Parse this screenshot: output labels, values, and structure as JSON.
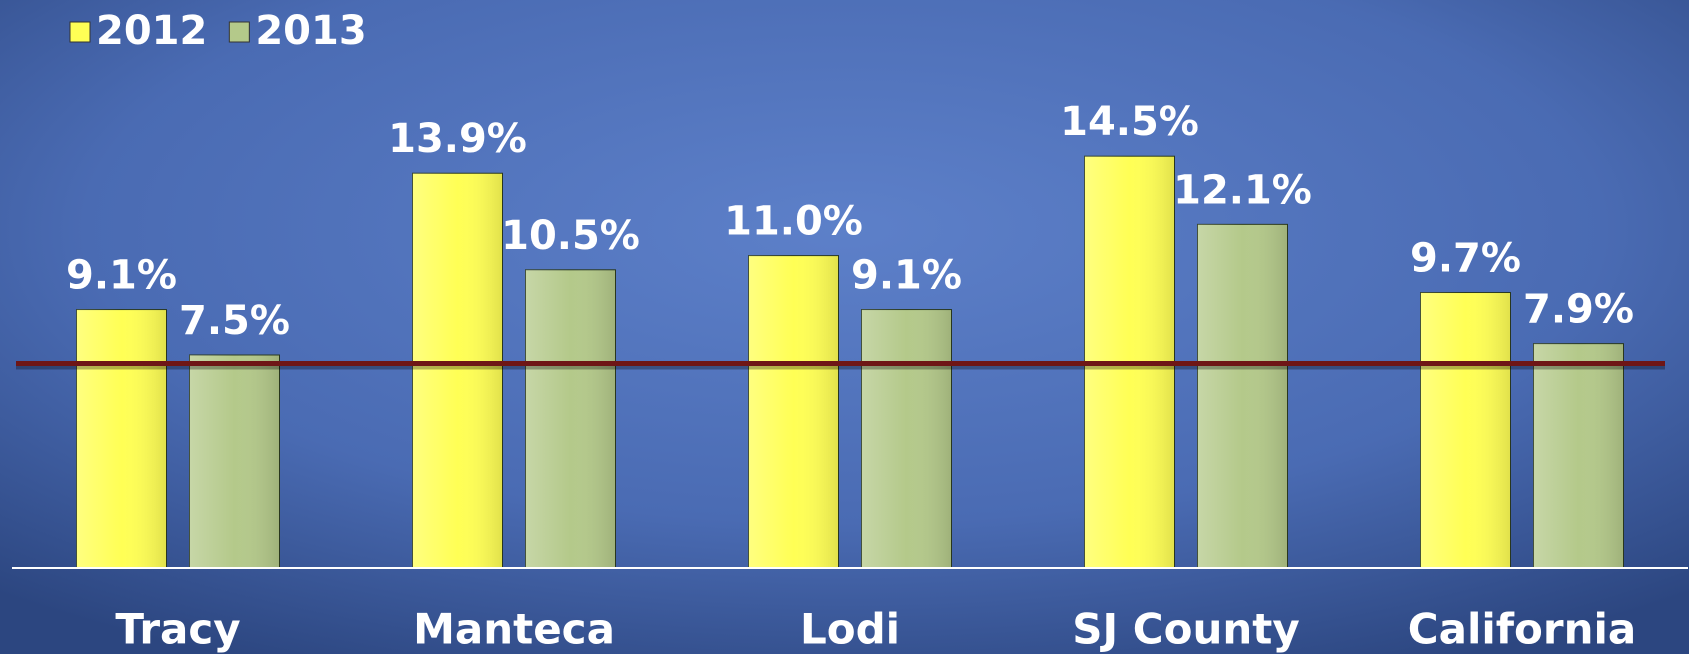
{
  "chart_data": {
    "type": "bar",
    "categories": [
      "Tracy",
      "Manteca",
      "Lodi",
      "SJ County",
      "California"
    ],
    "series": [
      {
        "name": "2012",
        "color": "#ffff55",
        "values": [
          9.1,
          13.9,
          11.0,
          14.5,
          9.7
        ],
        "value_labels": [
          "9.1%",
          "13.9%",
          "11.0%",
          "14.5%",
          "9.7%"
        ]
      },
      {
        "name": "2013",
        "color": "#b4c98a",
        "values": [
          7.5,
          10.5,
          9.1,
          12.1,
          7.9
        ],
        "value_labels": [
          "7.5%",
          "10.5%",
          "9.1%",
          "12.1%",
          "7.9%"
        ]
      }
    ],
    "ylim": [
      0,
      20
    ],
    "reference_line": {
      "value": 7.2,
      "color": "#6e1616"
    },
    "legend": "top-left"
  }
}
